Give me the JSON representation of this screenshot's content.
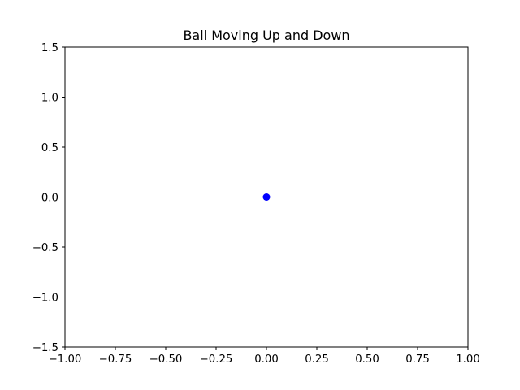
{
  "chart_data": {
    "type": "scatter",
    "title": "Ball Moving Up and Down",
    "xlabel": "",
    "ylabel": "",
    "xlim": [
      -1.0,
      1.0
    ],
    "ylim": [
      -1.5,
      1.5
    ],
    "xticks": [
      -1.0,
      -0.75,
      -0.5,
      -0.25,
      0.0,
      0.25,
      0.5,
      0.75,
      1.0
    ],
    "xtick_labels": [
      "−1.00",
      "−0.75",
      "−0.50",
      "−0.25",
      "0.00",
      "0.25",
      "0.50",
      "0.75",
      "1.00"
    ],
    "yticks": [
      -1.5,
      -1.0,
      -0.5,
      0.0,
      0.5,
      1.0,
      1.5
    ],
    "ytick_labels": [
      "−1.5",
      "−1.0",
      "−0.5",
      "0.0",
      "0.5",
      "1.0",
      "1.5"
    ],
    "grid": false,
    "legend": false,
    "series": [
      {
        "x": [
          0.0
        ],
        "y": [
          0.0
        ],
        "color": "#0000ff",
        "marker": "circle"
      }
    ]
  }
}
